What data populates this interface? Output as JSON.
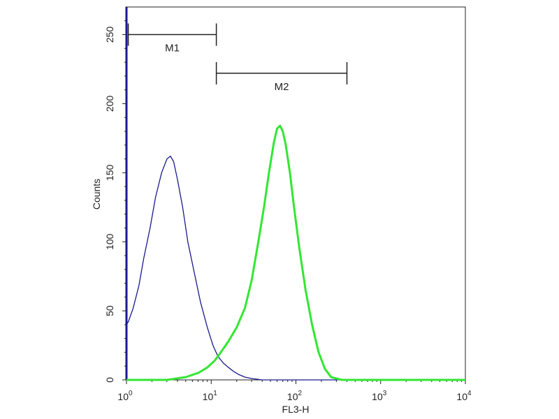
{
  "chart_data": {
    "type": "line",
    "title": "",
    "xlabel": "FL3-H",
    "ylabel": "Counts",
    "x_scale": "log",
    "xlim": [
      1,
      10000
    ],
    "ylim": [
      0,
      270
    ],
    "x_ticks": [
      {
        "value": 1,
        "base": "10",
        "exp": "0"
      },
      {
        "value": 10,
        "base": "10",
        "exp": "1"
      },
      {
        "value": 100,
        "base": "10",
        "exp": "2"
      },
      {
        "value": 1000,
        "base": "10",
        "exp": "3"
      },
      {
        "value": 10000,
        "base": "10",
        "exp": "4"
      }
    ],
    "y_ticks": [
      0,
      50,
      100,
      150,
      200,
      250
    ],
    "grid": false,
    "legend": "none",
    "gates": [
      {
        "name": "M1",
        "x_start": 1.05,
        "x_end": 11.5,
        "y": 250
      },
      {
        "name": "M2",
        "x_start": 11.5,
        "x_end": 400,
        "y": 222
      }
    ],
    "series": [
      {
        "color": "#1a1a8c",
        "x": [
          1.0,
          1.05,
          1.2,
          1.4,
          1.6,
          1.9,
          2.2,
          2.6,
          3.0,
          3.3,
          3.6,
          4.0,
          4.6,
          5.3,
          6.3,
          7.5,
          9.0,
          10.5,
          12.0,
          14.0,
          16.0,
          18.5,
          21.0,
          25.0,
          30.0,
          40.0,
          60.0,
          100.0,
          1000.0,
          10000.0
        ],
        "y": [
          40,
          42,
          52,
          68,
          88,
          110,
          132,
          150,
          160,
          162,
          158,
          145,
          125,
          100,
          78,
          56,
          38,
          25,
          17,
          12,
          9,
          6,
          4,
          2,
          1,
          0,
          0,
          0,
          0,
          0
        ]
      },
      {
        "color": "#33e633",
        "x": [
          1.0,
          3.0,
          5.0,
          7.0,
          9.0,
          11.0,
          13.0,
          16.0,
          20.0,
          25.0,
          30.0,
          36.0,
          42.0,
          48.0,
          55.0,
          60.0,
          65.0,
          70.0,
          76.0,
          85.0,
          95.0,
          110.0,
          130.0,
          155.0,
          185.0,
          220.0,
          260.0,
          300.0,
          350.0,
          500.0,
          1000.0,
          3000.0,
          10000.0
        ],
        "y": [
          0,
          0,
          2,
          5,
          9,
          14,
          20,
          28,
          38,
          52,
          72,
          100,
          125,
          150,
          172,
          182,
          184,
          180,
          170,
          150,
          125,
          95,
          65,
          40,
          20,
          8,
          2,
          1,
          0,
          0,
          0,
          0,
          0
        ]
      }
    ]
  }
}
